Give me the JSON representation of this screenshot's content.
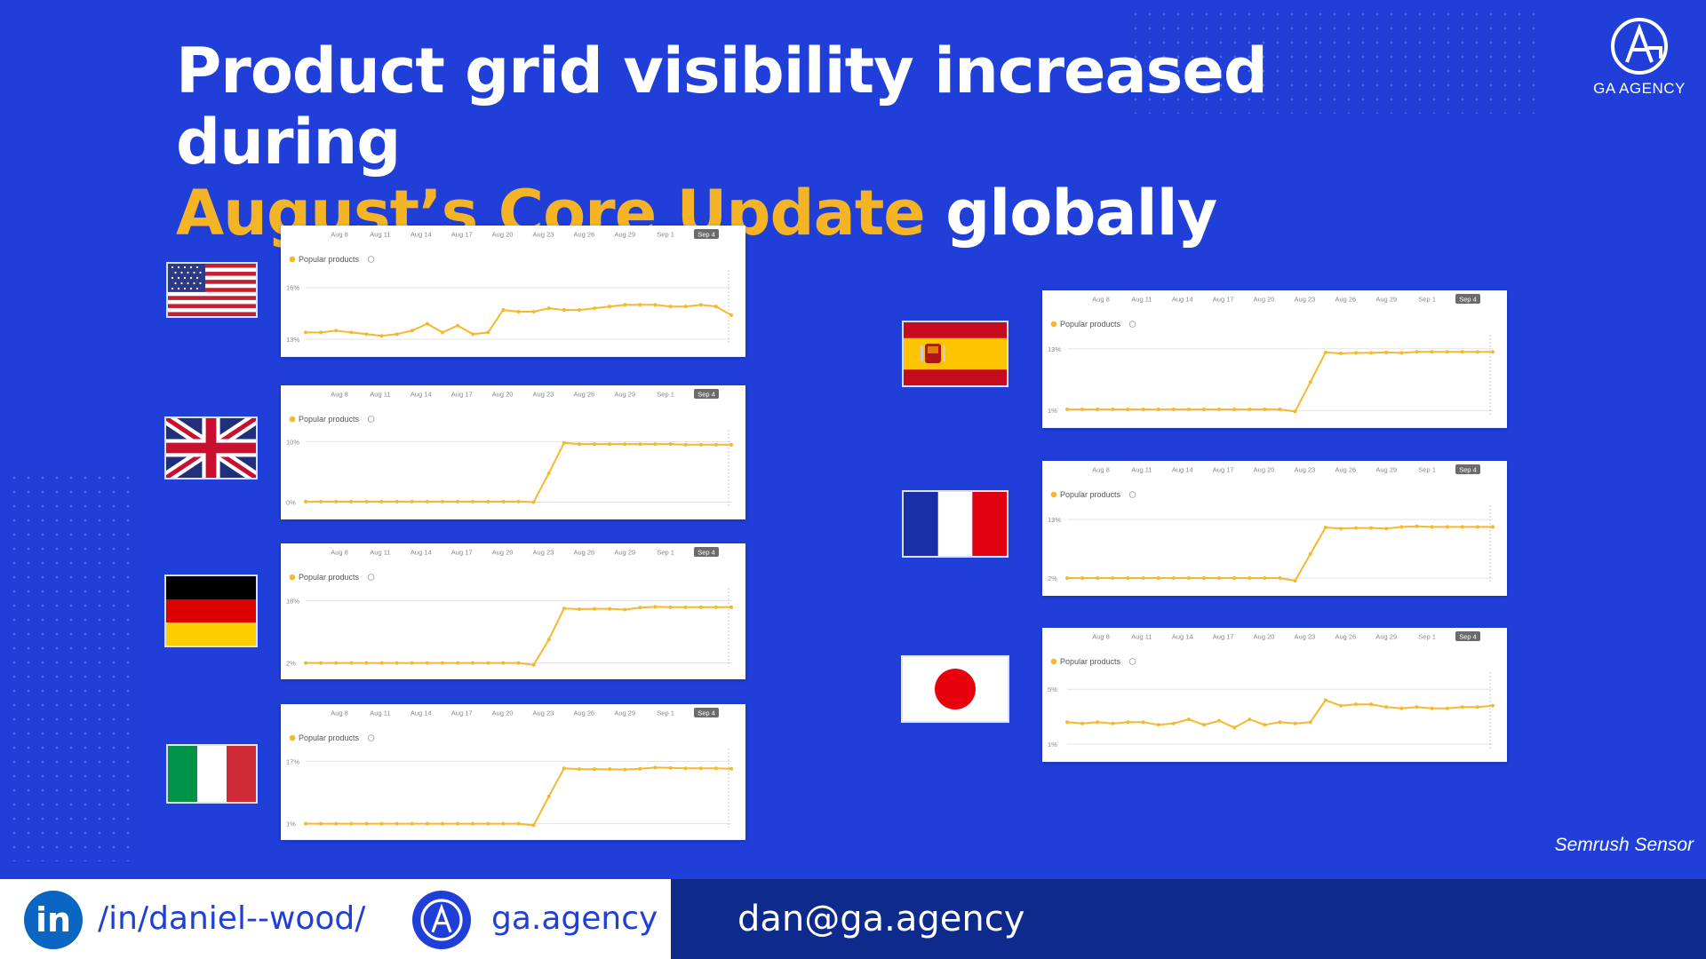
{
  "title": {
    "line1": "Product grid visibility increased during",
    "highlight": "August’s Core Update",
    "rest": " globally"
  },
  "logo": {
    "name": "GA AGENCY"
  },
  "source": "Semrush Sensor",
  "footer": {
    "linkedin": "/in/daniel--wood/",
    "website": "ga.agency",
    "email": "dan@ga.agency",
    "linkedin_icon_text": "in"
  },
  "colors": {
    "background": "#1f3fd8",
    "accent": "#f5b425",
    "footer_dark": "#0e2a8c",
    "line": "#f5b82e"
  },
  "icons": [
    "linkedin-icon",
    "ga-logo-icon"
  ],
  "chart_data": [
    {
      "country": "United States",
      "type": "line",
      "legend": "Popular products",
      "x_ticks": [
        "Aug 8",
        "Aug 11",
        "Aug 14",
        "Aug 17",
        "Aug 20",
        "Aug 23",
        "Aug 26",
        "Aug 29",
        "Sep 1",
        "Sep 4"
      ],
      "y_ticks": [
        "16%",
        "13%"
      ],
      "ylim": [
        12.7,
        16.5
      ],
      "values": [
        13.4,
        13.4,
        13.5,
        13.4,
        13.3,
        13.2,
        13.3,
        13.5,
        13.9,
        13.4,
        13.8,
        13.3,
        13.4,
        14.7,
        14.6,
        14.6,
        14.8,
        14.7,
        14.7,
        14.8,
        14.9,
        15.0,
        15.0,
        15.0,
        14.9,
        14.9,
        15.0,
        14.9,
        14.4
      ]
    },
    {
      "country": "United Kingdom",
      "type": "line",
      "legend": "Popular products",
      "x_ticks": [
        "Aug 8",
        "Aug 11",
        "Aug 14",
        "Aug 17",
        "Aug 20",
        "Aug 23",
        "Aug 26",
        "Aug 29",
        "Sep 1",
        "Sep 4"
      ],
      "y_ticks": [
        "10%",
        "0%"
      ],
      "ylim": [
        -0.8,
        10.5
      ],
      "values": [
        0.1,
        0.1,
        0.1,
        0.1,
        0.1,
        0.1,
        0.1,
        0.1,
        0.1,
        0.1,
        0.1,
        0.1,
        0.1,
        0.1,
        0.1,
        0.0,
        4.8,
        9.8,
        9.6,
        9.6,
        9.6,
        9.6,
        9.6,
        9.6,
        9.6,
        9.5,
        9.5,
        9.5,
        9.5
      ]
    },
    {
      "country": "Germany",
      "type": "line",
      "legend": "Popular products",
      "x_ticks": [
        "Aug 8",
        "Aug 11",
        "Aug 14",
        "Aug 17",
        "Aug 20",
        "Aug 23",
        "Aug 26",
        "Aug 29",
        "Sep 1",
        "Sep 4"
      ],
      "y_ticks": [
        "18%",
        "2%"
      ],
      "ylim": [
        1.0,
        19.0
      ],
      "values": [
        2.0,
        2.0,
        2.0,
        2.0,
        2.0,
        2.0,
        2.0,
        2.0,
        2.0,
        2.0,
        2.0,
        2.0,
        2.0,
        2.0,
        2.0,
        1.5,
        8.0,
        16.0,
        15.8,
        15.9,
        15.9,
        15.7,
        16.2,
        16.4,
        16.3,
        16.3,
        16.3,
        16.3,
        16.3
      ]
    },
    {
      "country": "Italy",
      "type": "line",
      "legend": "Popular products",
      "x_ticks": [
        "Aug 8",
        "Aug 11",
        "Aug 14",
        "Aug 17",
        "Aug 20",
        "Aug 23",
        "Aug 26",
        "Aug 29",
        "Sep 1",
        "Sep 4"
      ],
      "y_ticks": [
        "17%",
        "1%"
      ],
      "ylim": [
        0.0,
        18.0
      ],
      "values": [
        1.0,
        1.0,
        1.0,
        1.0,
        1.0,
        1.0,
        1.0,
        1.0,
        1.0,
        1.0,
        1.0,
        1.0,
        1.0,
        1.0,
        1.0,
        0.6,
        8.0,
        15.2,
        15.0,
        15.0,
        15.0,
        14.9,
        15.1,
        15.4,
        15.3,
        15.2,
        15.2,
        15.2,
        15.1
      ]
    },
    {
      "country": "Spain",
      "type": "line",
      "legend": "Popular products",
      "x_ticks": [
        "Aug 8",
        "Aug 11",
        "Aug 14",
        "Aug 17",
        "Aug 20",
        "Aug 23",
        "Aug 26",
        "Aug 29",
        "Sep 1",
        "Sep 4"
      ],
      "y_ticks": [
        "13%",
        "1%"
      ],
      "ylim": [
        0.0,
        14.0
      ],
      "values": [
        1.2,
        1.2,
        1.2,
        1.2,
        1.2,
        1.2,
        1.2,
        1.2,
        1.2,
        1.2,
        1.2,
        1.2,
        1.2,
        1.2,
        1.2,
        0.8,
        6.5,
        12.3,
        12.1,
        12.2,
        12.2,
        12.3,
        12.2,
        12.4,
        12.4,
        12.4,
        12.4,
        12.4,
        12.4
      ]
    },
    {
      "country": "France",
      "type": "line",
      "legend": "Popular products",
      "x_ticks": [
        "Aug 8",
        "Aug 11",
        "Aug 14",
        "Aug 17",
        "Aug 20",
        "Aug 23",
        "Aug 26",
        "Aug 29",
        "Sep 1",
        "Sep 4"
      ],
      "y_ticks": [
        "13%",
        "2%"
      ],
      "ylim": [
        1.0,
        14.0
      ],
      "values": [
        2.0,
        2.0,
        2.0,
        2.0,
        2.0,
        2.0,
        2.0,
        2.0,
        2.0,
        2.0,
        2.0,
        2.0,
        2.0,
        2.0,
        2.0,
        1.5,
        6.5,
        11.5,
        11.3,
        11.4,
        11.4,
        11.3,
        11.6,
        11.7,
        11.6,
        11.6,
        11.6,
        11.6,
        11.6
      ]
    },
    {
      "country": "Japan",
      "type": "line",
      "legend": "Popular products",
      "x_ticks": [
        "Aug 8",
        "Aug 11",
        "Aug 14",
        "Aug 17",
        "Aug 20",
        "Aug 23",
        "Aug 26",
        "Aug 29",
        "Sep 1",
        "Sep 4"
      ],
      "y_ticks": [
        "5%",
        "1%"
      ],
      "ylim": [
        0.6,
        5.6
      ],
      "values": [
        2.6,
        2.5,
        2.6,
        2.5,
        2.6,
        2.6,
        2.4,
        2.5,
        2.8,
        2.4,
        2.7,
        2.2,
        2.8,
        2.4,
        2.6,
        2.5,
        2.6,
        4.2,
        3.8,
        3.9,
        3.9,
        3.7,
        3.6,
        3.7,
        3.6,
        3.6,
        3.7,
        3.7,
        3.8
      ]
    }
  ]
}
